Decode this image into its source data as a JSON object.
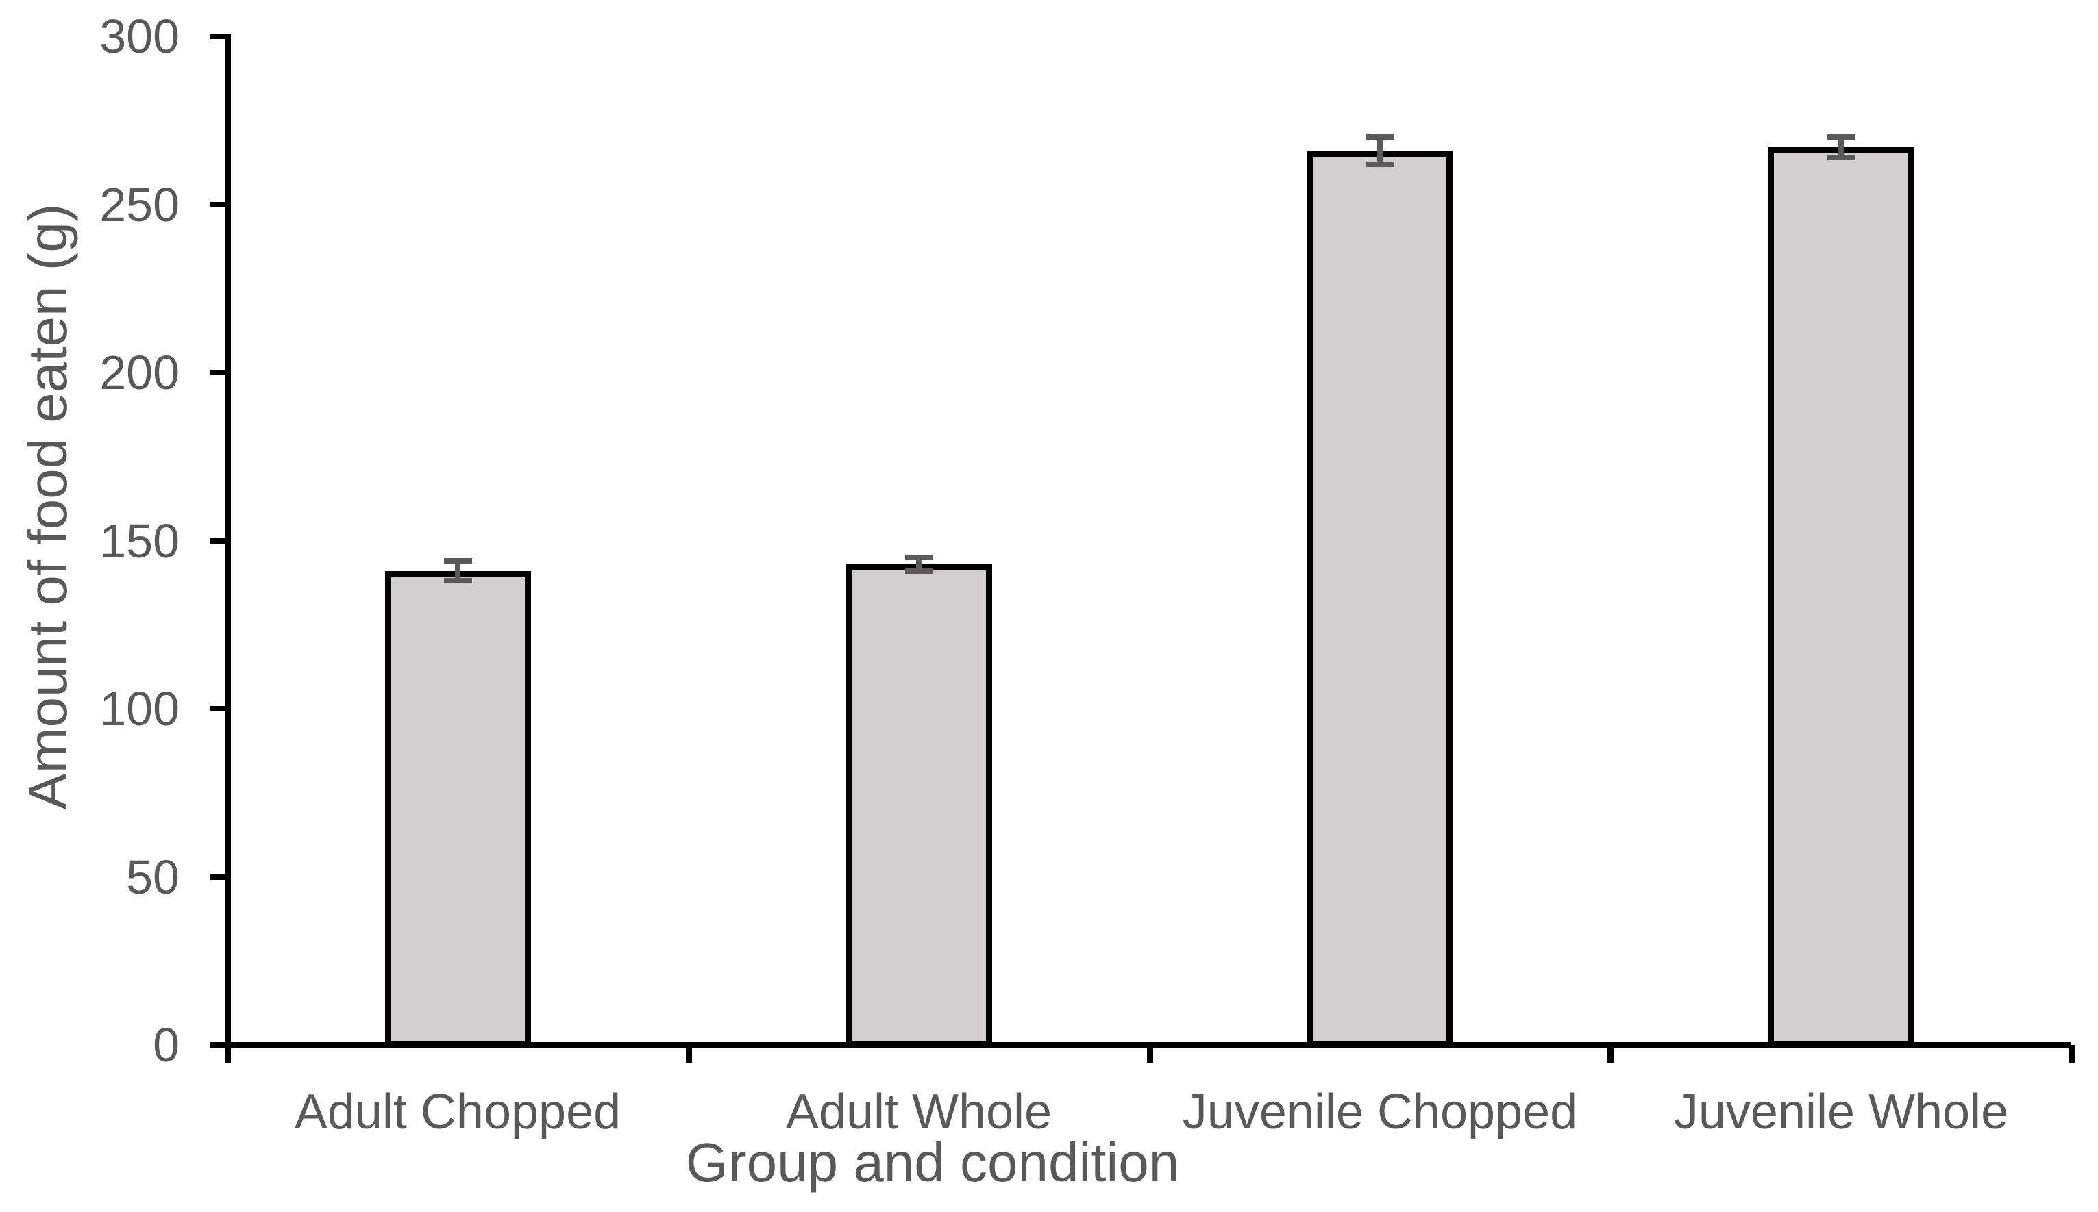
{
  "chart_data": {
    "type": "bar",
    "title": "",
    "categories": [
      "Adult Chopped",
      "Adult Whole",
      "Juvenile Chopped",
      "Juvenile Whole"
    ],
    "values": [
      141,
      143,
      266,
      267
    ],
    "error_bars": [
      3,
      2,
      4,
      3
    ],
    "xlabel": "Group and condition",
    "ylabel": "Amount of food eaten (g)",
    "ylim": [
      0,
      300
    ],
    "yticks": [
      0,
      50,
      100,
      150,
      200,
      250,
      300
    ],
    "grid": "off",
    "legend": "none",
    "colors": {
      "bar_fill": "#d0cece",
      "bar_border": "#000000",
      "error_bar": "#595959",
      "axis": "#000000",
      "text": "#595959",
      "background": "#ffffff"
    }
  }
}
